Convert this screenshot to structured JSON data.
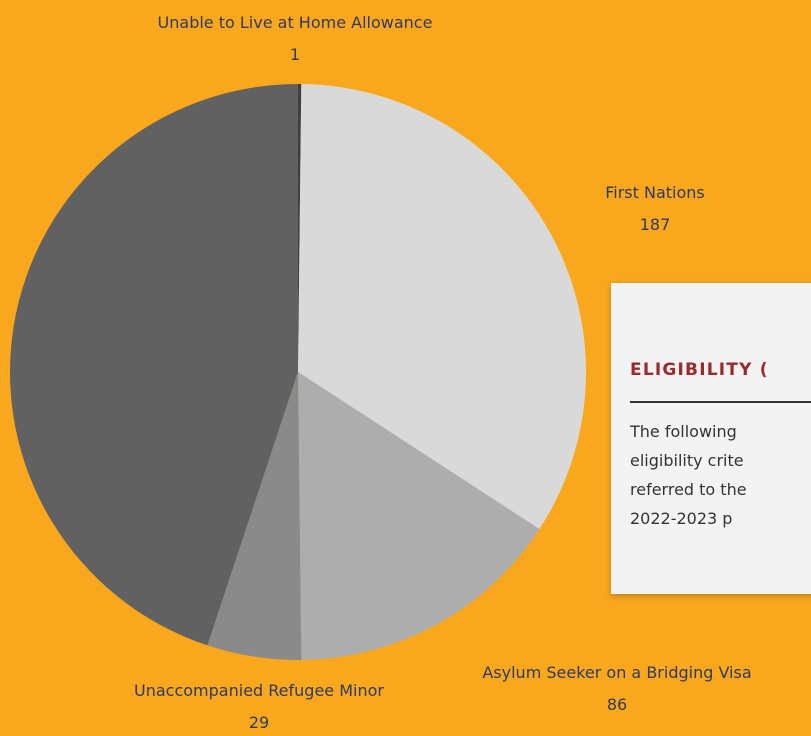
{
  "chart_data": {
    "type": "pie",
    "title": "",
    "start_angle_deg": 0,
    "direction": "clockwise",
    "slices": [
      {
        "label": "Unable to Live at Home Allowance",
        "value": 1,
        "color": "#3F3F3F"
      },
      {
        "label": "First Nations",
        "value": 187,
        "color": "#D9D9D9"
      },
      {
        "label": "Asylum Seeker on a Bridging Visa",
        "value": 86,
        "color": "#ADADAD"
      },
      {
        "label": "Unaccompanied Refugee Minor",
        "value": 29,
        "color": "#8A8A8A"
      },
      {
        "label": "",
        "value": 247,
        "color": "#616161"
      }
    ]
  },
  "info_card": {
    "title": "ELIGIBILITY (",
    "lines": [
      "The following",
      "eligibility crite",
      "referred to the",
      "2022-2023 p"
    ]
  },
  "colors": {
    "background": "#F9A81E",
    "label_text": "#2F3A63",
    "card_background": "#F3F3F3",
    "card_title": "#9B2A2A"
  }
}
